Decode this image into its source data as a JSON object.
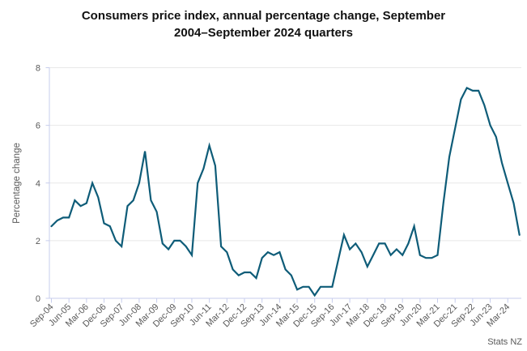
{
  "header": {
    "title_line1": "Consumers price index, annual percentage change, September",
    "title_line2": "2004–September 2024 quarters"
  },
  "source": {
    "label": "Stats NZ"
  },
  "chart_data": {
    "type": "line",
    "title": "Consumers price index, annual percentage change, September 2004–September 2024 quarters",
    "xlabel": "",
    "ylabel": "Percentage change",
    "ylim": [
      0,
      8
    ],
    "yticks": [
      0,
      2,
      4,
      6,
      8
    ],
    "grid": "horizontal-only",
    "legend": "none",
    "line_color": "#0e5c78",
    "axis_color": "#c7cdec",
    "gridline_color": "#e8e8e8",
    "tick_label_color": "#595959",
    "xtick_label_step": 3,
    "visible_xtick_labels": [
      "Sep-04",
      "Jun-05",
      "Mar-06",
      "Dec-06",
      "Sep-07",
      "Jun-08",
      "Mar-09",
      "Dec-09",
      "Sep-10",
      "Jun-11",
      "Mar-12",
      "Dec-12",
      "Sep-13",
      "Jun-14",
      "Mar-15",
      "Dec-15",
      "Sep-16",
      "Jun-17",
      "Mar-18",
      "Dec-18",
      "Sep-19",
      "Jun-20",
      "Mar-21",
      "Dec-21",
      "Sep-22",
      "Jun-23",
      "Mar-24"
    ],
    "x": [
      "Sep-04",
      "Dec-04",
      "Mar-05",
      "Jun-05",
      "Sep-05",
      "Dec-05",
      "Mar-06",
      "Jun-06",
      "Sep-06",
      "Dec-06",
      "Mar-07",
      "Jun-07",
      "Sep-07",
      "Dec-07",
      "Mar-08",
      "Jun-08",
      "Sep-08",
      "Dec-08",
      "Mar-09",
      "Jun-09",
      "Sep-09",
      "Dec-09",
      "Mar-10",
      "Jun-10",
      "Sep-10",
      "Dec-10",
      "Mar-11",
      "Jun-11",
      "Sep-11",
      "Dec-11",
      "Mar-12",
      "Jun-12",
      "Sep-12",
      "Dec-12",
      "Mar-13",
      "Jun-13",
      "Sep-13",
      "Dec-13",
      "Mar-14",
      "Jun-14",
      "Sep-14",
      "Dec-14",
      "Mar-15",
      "Jun-15",
      "Sep-15",
      "Dec-15",
      "Mar-16",
      "Jun-16",
      "Sep-16",
      "Dec-16",
      "Mar-17",
      "Jun-17",
      "Sep-17",
      "Dec-17",
      "Mar-18",
      "Jun-18",
      "Sep-18",
      "Dec-18",
      "Mar-19",
      "Jun-19",
      "Sep-19",
      "Dec-19",
      "Mar-20",
      "Jun-20",
      "Sep-20",
      "Dec-20",
      "Mar-21",
      "Jun-21",
      "Sep-21",
      "Dec-21",
      "Mar-22",
      "Jun-22",
      "Sep-22",
      "Dec-22",
      "Mar-23",
      "Jun-23",
      "Sep-23",
      "Dec-23",
      "Mar-24",
      "Jun-24",
      "Sep-24"
    ],
    "values": [
      2.5,
      2.7,
      2.8,
      2.8,
      3.4,
      3.2,
      3.3,
      4.0,
      3.5,
      2.6,
      2.5,
      2.0,
      1.8,
      3.2,
      3.4,
      4.0,
      5.1,
      3.4,
      3.0,
      1.9,
      1.7,
      2.0,
      2.0,
      1.8,
      1.5,
      4.0,
      4.5,
      5.3,
      4.6,
      1.8,
      1.6,
      1.0,
      0.8,
      0.9,
      0.9,
      0.7,
      1.4,
      1.6,
      1.5,
      1.6,
      1.0,
      0.8,
      0.3,
      0.4,
      0.4,
      0.1,
      0.4,
      0.4,
      0.4,
      1.3,
      2.2,
      1.7,
      1.9,
      1.6,
      1.1,
      1.5,
      1.9,
      1.9,
      1.5,
      1.7,
      1.5,
      1.9,
      2.5,
      1.5,
      1.4,
      1.4,
      1.5,
      3.3,
      4.9,
      5.9,
      6.9,
      7.3,
      7.2,
      7.2,
      6.7,
      6.0,
      5.6,
      4.7,
      4.0,
      3.3,
      2.2
    ]
  }
}
